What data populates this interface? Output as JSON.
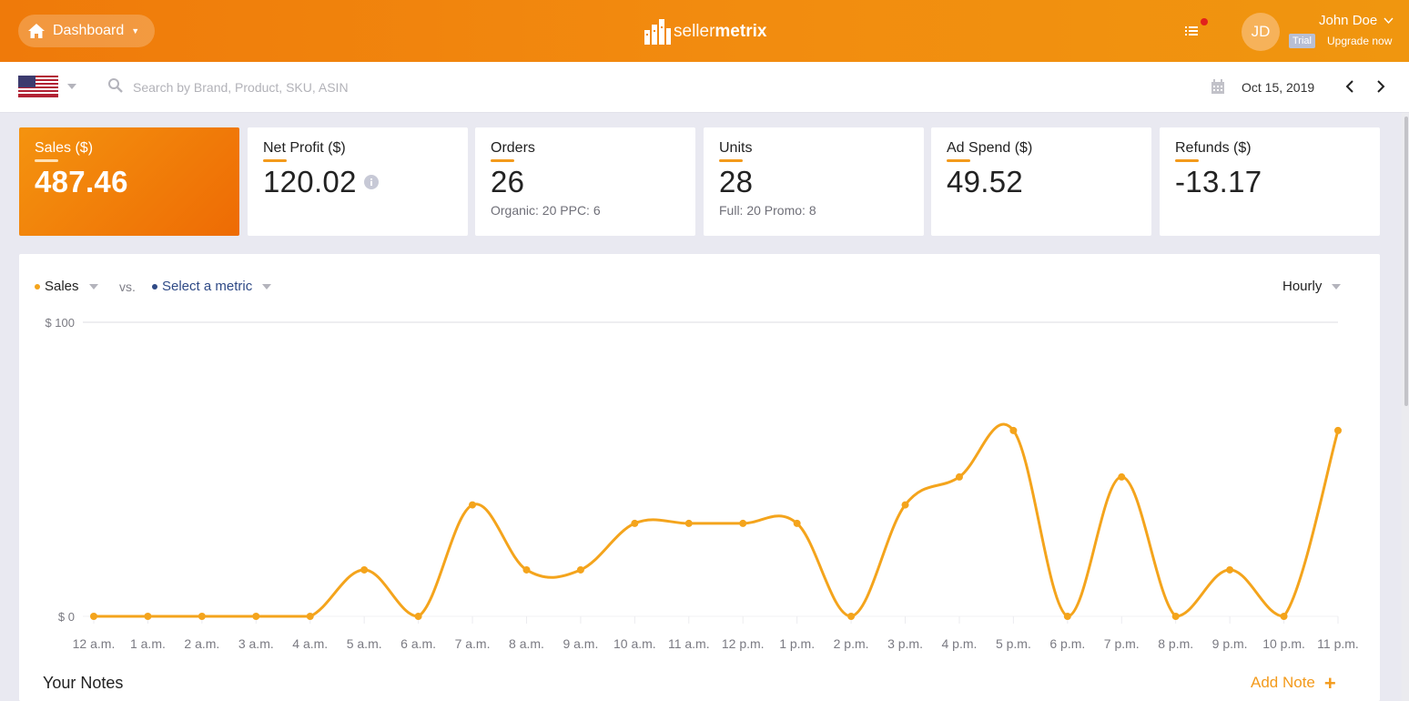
{
  "colors": {
    "brand": "#f28b0f",
    "accent": "#f4a41c",
    "secondary": "#2f4a86"
  },
  "header": {
    "dashboard_label": "Dashboard",
    "logo_light": "seller",
    "logo_bold": "metrix",
    "avatar_initials": "JD",
    "user_name": "John Doe",
    "trial_label": "Trial",
    "upgrade_label": "Upgrade now"
  },
  "toolbar": {
    "search_placeholder": "Search by Brand, Product, SKU, ASIN",
    "date": "Oct 15, 2019"
  },
  "cards": [
    {
      "label": "Sales ($)",
      "value": "487.46",
      "sub": ""
    },
    {
      "label": "Net Profit ($)",
      "value": "120.02",
      "sub": ""
    },
    {
      "label": "Orders",
      "value": "26",
      "sub": "Organic: 20 PPC: 6"
    },
    {
      "label": "Units",
      "value": "28",
      "sub": "Full: 20 Promo: 8"
    },
    {
      "label": "Ad Spend ($)",
      "value": "49.52",
      "sub": ""
    },
    {
      "label": "Refunds ($)",
      "value": "-13.17",
      "sub": ""
    }
  ],
  "chart_controls": {
    "metric_primary": "Sales",
    "vs_label": "vs.",
    "metric_secondary": "Select a metric",
    "interval": "Hourly"
  },
  "chart_data": {
    "type": "line",
    "categories": [
      "12 a.m.",
      "1 a.m.",
      "2 a.m.",
      "3 a.m.",
      "4 a.m.",
      "5 a.m.",
      "6 a.m.",
      "7 a.m.",
      "8 a.m.",
      "9 a.m.",
      "10 a.m.",
      "11 a.m.",
      "12 p.m.",
      "1 p.m.",
      "2 p.m.",
      "3 p.m.",
      "4 p.m.",
      "5 p.m.",
      "6 p.m.",
      "7 p.m.",
      "8 p.m.",
      "9 p.m.",
      "10 p.m.",
      "11 p.m."
    ],
    "series": [
      {
        "name": "Sales",
        "values": [
          0,
          0,
          0,
          0,
          0,
          15.8,
          0,
          37.9,
          15.8,
          15.8,
          31.6,
          31.6,
          31.6,
          31.6,
          0,
          37.9,
          47.4,
          63.2,
          0,
          47.4,
          0,
          15.8,
          0,
          63.2
        ]
      }
    ],
    "yticks": [
      "$ 100",
      "$ 0"
    ],
    "ylim": [
      0,
      100
    ],
    "grid": true
  },
  "notes": {
    "title": "Your Notes",
    "add_label": "Add Note",
    "add_icon": "+"
  }
}
